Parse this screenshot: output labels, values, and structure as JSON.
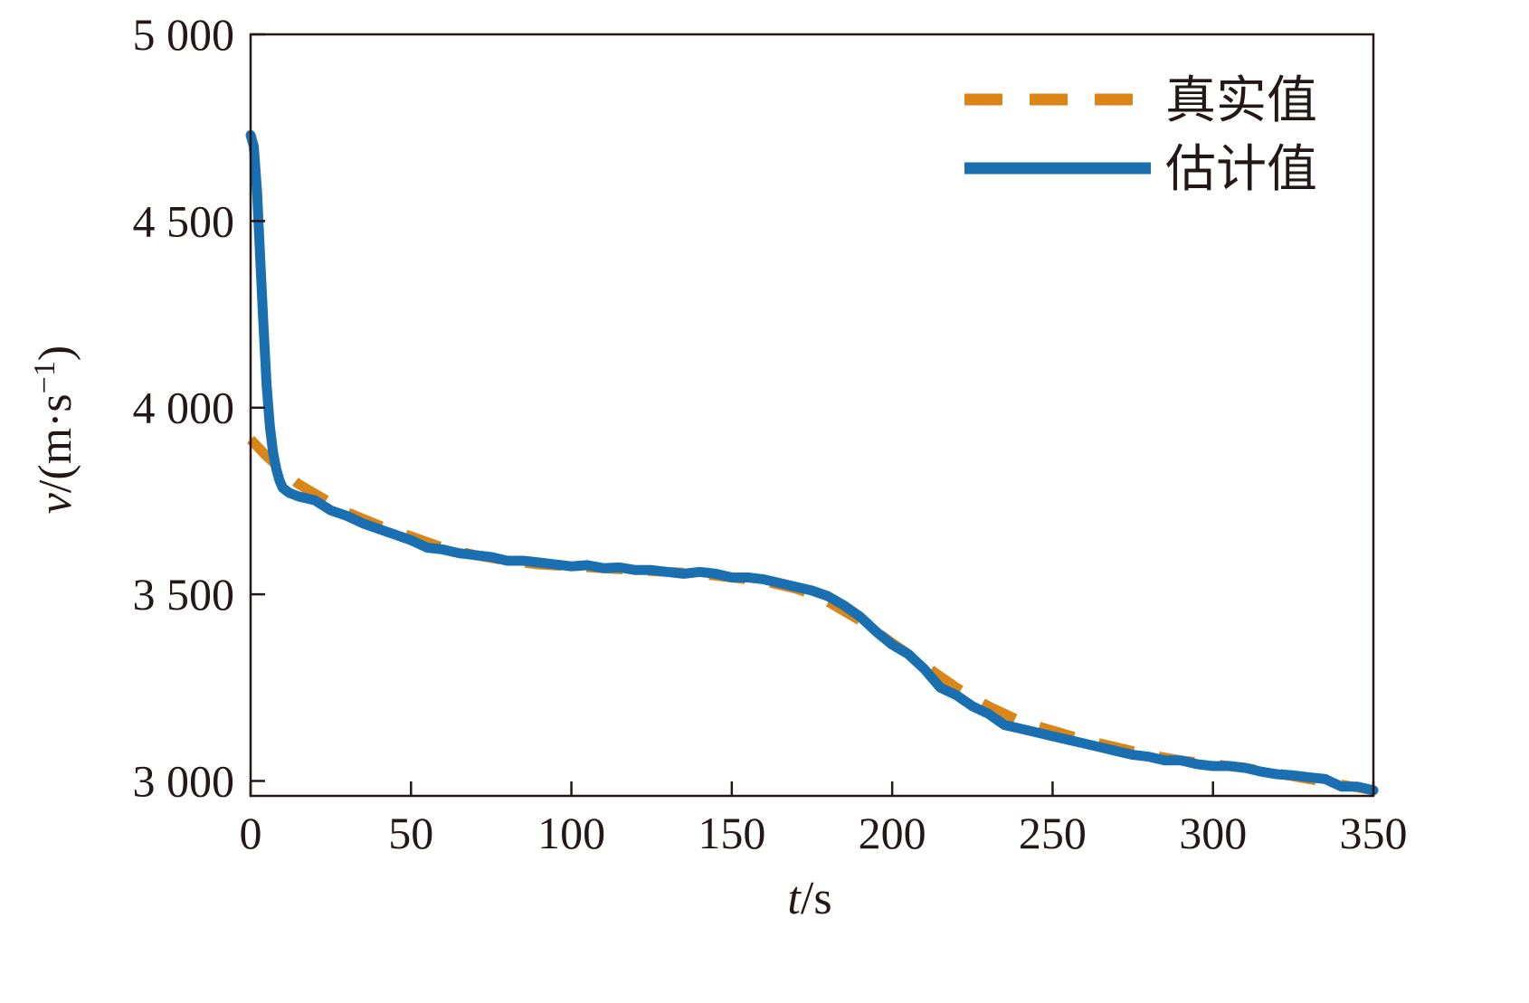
{
  "chart_data": {
    "type": "line",
    "xlabel_var": "t",
    "xlabel_unit": "/s",
    "ylabel_var": "v",
    "ylabel_unit": "/(m·s",
    "ylabel_sup": "−1",
    "ylabel_close": ")",
    "xlim": [
      0,
      350
    ],
    "ylim": [
      2960,
      5000
    ],
    "x_ticks": [
      0,
      50,
      100,
      150,
      200,
      250,
      300,
      350
    ],
    "x_tick_labels": [
      "0",
      "50",
      "100",
      "150",
      "200",
      "250",
      "300",
      "350"
    ],
    "y_ticks": [
      3000,
      3500,
      4000,
      4500,
      5000
    ],
    "y_tick_labels": [
      "3 000",
      "3 500",
      "4 000",
      "4 500",
      "5 000"
    ],
    "grid": false,
    "legend_position": "top-right",
    "colors": {
      "true": "#d98518",
      "estimate": "#1a6fb0",
      "axis": "#231815"
    },
    "series": [
      {
        "name": "真实值",
        "style": "dashed",
        "x": [
          0,
          5,
          10,
          15,
          20,
          25,
          30,
          40,
          50,
          60,
          70,
          80,
          90,
          100,
          110,
          120,
          130,
          140,
          150,
          160,
          170,
          175,
          180,
          190,
          200,
          210,
          220,
          230,
          240,
          250,
          260,
          270,
          280,
          290,
          300,
          310,
          320,
          330,
          340,
          350
        ],
        "y": [
          3915,
          3870,
          3830,
          3795,
          3770,
          3745,
          3720,
          3685,
          3655,
          3625,
          3605,
          3590,
          3580,
          3575,
          3570,
          3565,
          3560,
          3555,
          3545,
          3535,
          3515,
          3500,
          3480,
          3430,
          3370,
          3310,
          3250,
          3200,
          3160,
          3135,
          3110,
          3090,
          3070,
          3055,
          3045,
          3035,
          3020,
          3005,
          2990,
          2975
        ]
      },
      {
        "name": "估计值",
        "style": "solid",
        "x": [
          0,
          1,
          2,
          3,
          4,
          5,
          6,
          7,
          8,
          9,
          10,
          12,
          15,
          20,
          25,
          30,
          35,
          40,
          45,
          50,
          55,
          60,
          65,
          70,
          75,
          80,
          85,
          90,
          95,
          100,
          105,
          110,
          115,
          120,
          125,
          130,
          135,
          140,
          145,
          150,
          155,
          160,
          165,
          170,
          175,
          180,
          185,
          190,
          195,
          200,
          205,
          210,
          215,
          220,
          225,
          230,
          235,
          240,
          245,
          250,
          255,
          260,
          265,
          270,
          275,
          280,
          285,
          290,
          295,
          300,
          305,
          310,
          315,
          320,
          325,
          330,
          335,
          340,
          345,
          350
        ],
        "y": [
          4730,
          4700,
          4580,
          4400,
          4220,
          4060,
          3950,
          3880,
          3835,
          3805,
          3785,
          3772,
          3762,
          3752,
          3725,
          3710,
          3690,
          3675,
          3660,
          3645,
          3625,
          3620,
          3610,
          3605,
          3600,
          3590,
          3590,
          3585,
          3580,
          3575,
          3578,
          3570,
          3572,
          3565,
          3565,
          3560,
          3555,
          3560,
          3555,
          3545,
          3545,
          3540,
          3530,
          3520,
          3510,
          3495,
          3470,
          3440,
          3400,
          3365,
          3340,
          3300,
          3250,
          3230,
          3200,
          3180,
          3150,
          3140,
          3130,
          3120,
          3110,
          3100,
          3090,
          3080,
          3070,
          3065,
          3055,
          3055,
          3045,
          3040,
          3040,
          3035,
          3025,
          3018,
          3015,
          3010,
          3005,
          2985,
          2985,
          2975
        ]
      }
    ]
  }
}
